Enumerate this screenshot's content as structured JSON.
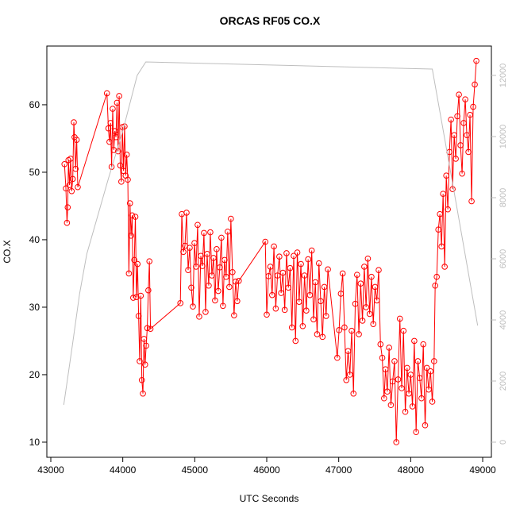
{
  "chart_data": {
    "type": "line",
    "markers": true,
    "title": "ORCAS RF05 CO.X",
    "x_label": "UTC Seconds",
    "y_label": "CO.X",
    "xlim": [
      42945,
      49121
    ],
    "xticks": [
      43000,
      44000,
      45000,
      46000,
      47000,
      48000,
      49000
    ],
    "ylim": [
      7.76,
      68.7
    ],
    "yticks": [
      10,
      20,
      30,
      40,
      50,
      60
    ],
    "y2lim": [
      -494,
      12961
    ],
    "y2ticks": [
      0,
      2000,
      4000,
      6000,
      8000,
      10000,
      12000
    ],
    "y2_color": "#bebebe",
    "series": [
      {
        "color": "#ff0000",
        "x": [
          43190,
          43210,
          43225,
          43235,
          43245,
          43260,
          43275,
          43290,
          43305,
          43320,
          43330,
          43345,
          43360,
          43375,
          43780,
          43800,
          43815,
          43830,
          43845,
          43860,
          43875,
          43890,
          43905,
          43920,
          43935,
          43950,
          43965,
          43980,
          43995,
          44010,
          44025,
          44040,
          44055,
          44070,
          44085,
          44100,
          44115,
          44130,
          44145,
          44160,
          44175,
          44190,
          44205,
          44220,
          44235,
          44250,
          44265,
          44280,
          44295,
          44310,
          44325,
          44340,
          44355,
          44370,
          44385,
          44800,
          44820,
          44842,
          44864,
          44886,
          44908,
          44930,
          44952,
          44974,
          44996,
          45018,
          45040,
          45062,
          45084,
          45106,
          45128,
          45150,
          45172,
          45194,
          45216,
          45238,
          45260,
          45282,
          45304,
          45326,
          45348,
          45370,
          45392,
          45414,
          45436,
          45458,
          45480,
          45502,
          45524,
          45546,
          45568,
          45590,
          45612,
          45980,
          46000,
          46025,
          46050,
          46075,
          46100,
          46125,
          46150,
          46175,
          46200,
          46225,
          46250,
          46275,
          46300,
          46325,
          46350,
          46375,
          46400,
          46425,
          46450,
          46475,
          46500,
          46525,
          46550,
          46575,
          46600,
          46625,
          46650,
          46675,
          46700,
          46725,
          46750,
          46775,
          46800,
          46825,
          46850,
          46980,
          47005,
          47030,
          47055,
          47080,
          47105,
          47130,
          47155,
          47180,
          47205,
          47230,
          47255,
          47280,
          47305,
          47330,
          47355,
          47380,
          47405,
          47430,
          47455,
          47480,
          47505,
          47530,
          47555,
          47580,
          47605,
          47630,
          47650,
          47675,
          47700,
          47725,
          47750,
          47775,
          47800,
          47825,
          47850,
          47875,
          47900,
          47925,
          47950,
          47975,
          48000,
          48025,
          48050,
          48075,
          48100,
          48125,
          48150,
          48175,
          48200,
          48225,
          48250,
          48275,
          48300,
          48325,
          48340,
          48362,
          48384,
          48406,
          48428,
          48450,
          48472,
          48494,
          48516,
          48538,
          48560,
          48582,
          48604,
          48626,
          48648,
          48670,
          48692,
          48714,
          48736,
          48758,
          48780,
          48802,
          48824,
          48846,
          48868,
          48890,
          48912
        ],
        "values": [
          51.2,
          47.6,
          42.5,
          44.8,
          51.8,
          48.1,
          52.0,
          47.2,
          49.0,
          57.4,
          55.2,
          50.5,
          54.8,
          47.8,
          61.7,
          56.5,
          54.5,
          57.3,
          50.8,
          59.4,
          53.3,
          56.1,
          55.2,
          60.3,
          53.1,
          61.3,
          51.0,
          48.6,
          56.7,
          50.2,
          56.8,
          49.5,
          52.6,
          48.9,
          35.0,
          45.4,
          40.6,
          43.6,
          31.4,
          37.0,
          43.4,
          31.5,
          36.4,
          28.7,
          22.0,
          31.7,
          19.2,
          17.2,
          25.3,
          21.5,
          24.3,
          26.9,
          32.5,
          36.8,
          26.8,
          30.6,
          43.8,
          38.2,
          39.1,
          44.0,
          35.5,
          38.8,
          32.9,
          30.1,
          39.5,
          36.0,
          42.2,
          28.6,
          37.6,
          36.1,
          41.0,
          29.3,
          37.9,
          33.2,
          41.1,
          34.7,
          37.3,
          31.0,
          38.6,
          32.4,
          35.9,
          40.3,
          30.2,
          37.0,
          34.5,
          41.2,
          33.0,
          43.1,
          35.2,
          28.8,
          33.8,
          30.9,
          33.9,
          39.7,
          28.9,
          34.6,
          36.0,
          31.8,
          39.0,
          29.8,
          34.7,
          37.5,
          32.1,
          35.1,
          29.6,
          38.0,
          32.9,
          35.8,
          27.0,
          37.6,
          25.0,
          38.1,
          30.8,
          36.4,
          27.2,
          34.7,
          29.5,
          37.1,
          31.8,
          38.4,
          28.2,
          33.7,
          26.0,
          36.5,
          30.9,
          25.6,
          33.0,
          28.7,
          35.6,
          22.5,
          26.6,
          32.0,
          35.0,
          27.0,
          19.2,
          23.5,
          20.0,
          26.5,
          17.2,
          30.5,
          34.8,
          26.0,
          33.5,
          28.0,
          36.0,
          30.0,
          37.2,
          29.0,
          34.5,
          27.5,
          33.0,
          31.0,
          35.5,
          24.5,
          22.5,
          16.5,
          20.8,
          17.5,
          24.0,
          15.5,
          19.0,
          22.0,
          10.0,
          19.3,
          28.3,
          18.0,
          26.5,
          14.5,
          21.0,
          17.2,
          20.0,
          15.3,
          25.0,
          11.5,
          22.0,
          19.5,
          16.5,
          24.5,
          12.5,
          21.0,
          17.8,
          20.5,
          16.0,
          22.0,
          33.2,
          34.5,
          41.5,
          43.8,
          39.0,
          46.8,
          36.0,
          49.5,
          44.5,
          53.0,
          57.8,
          47.5,
          55.5,
          52.0,
          58.3,
          61.5,
          54.0,
          49.8,
          57.3,
          60.8,
          55.5,
          53.0,
          58.5,
          45.7,
          59.7,
          63.0,
          66.5
        ]
      },
      {
        "color": "#bebebe",
        "axis": "y2",
        "x": [
          43180,
          43300,
          43400,
          43500,
          43800,
          44000,
          44200,
          44320,
          48300,
          48600,
          48930
        ],
        "values": [
          1221,
          3169,
          4857,
          6156,
          8623,
          10182,
          12000,
          12442,
          12208,
          8234,
          3818
        ]
      }
    ]
  }
}
